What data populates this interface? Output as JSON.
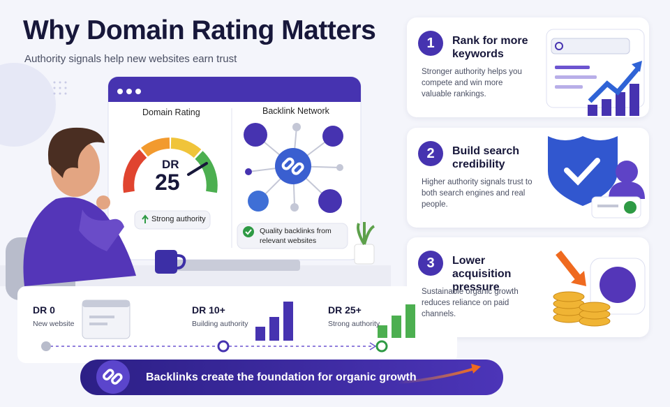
{
  "header": {
    "title": "Why Domain Rating Matters",
    "subtitle": "Authority signals help new websites earn trust"
  },
  "dashboard": {
    "gauge": {
      "title": "Domain Rating",
      "label": "DR",
      "value": 25,
      "status": "Strong authority"
    },
    "network": {
      "title": "Backlink Network",
      "caption": "Quality backlinks from relevant websites"
    }
  },
  "benefits": [
    {
      "number": 1,
      "title": "Rank for more keywords",
      "text": "Stronger authority helps you compete and win more valuable rankings."
    },
    {
      "number": 2,
      "title": "Build search credibility",
      "text": "Higher authority signals trust to both search engines and real people."
    },
    {
      "number": 3,
      "title": "Lower acquisition pressure",
      "text": "Sustainable organic growth reduces reliance on paid channels."
    }
  ],
  "timeline": [
    {
      "label": "DR 0",
      "caption": "New website"
    },
    {
      "label": "DR 10+",
      "caption": "Building authority"
    },
    {
      "label": "DR 25+",
      "caption": "Strong authority"
    }
  ],
  "banner": {
    "text": "Backlinks create the foundation for organic growth"
  }
}
